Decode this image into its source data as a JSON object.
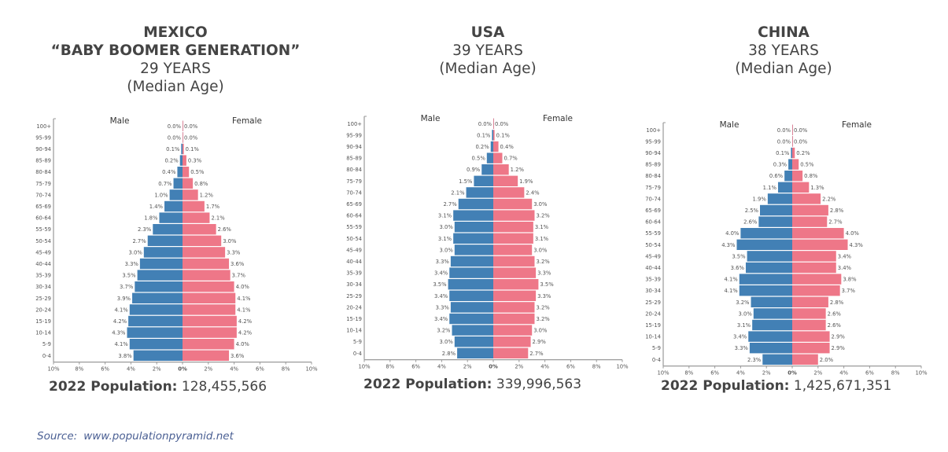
{
  "colors": {
    "male": "#4280b5",
    "female": "#ee7788",
    "text": "#444444",
    "axis": "#9a9a9a",
    "source": "#4a5f93"
  },
  "source": {
    "label": "Source:",
    "url": "www.populationpyramid.net"
  },
  "chart_data": [
    {
      "type": "bar",
      "subtype": "population-pyramid",
      "title_lines": [
        "MEXICO",
        "“BABY BOOMER GENERATION”",
        "29 YEARS",
        "(Median Age)"
      ],
      "title_bold_lines": 2,
      "population_label": "2022 Population:",
      "population_value": "128,455,566",
      "legend": [
        "Male",
        "Female"
      ],
      "categories": [
        "100+",
        "95-99",
        "90-94",
        "85-89",
        "80-84",
        "75-79",
        "70-74",
        "65-69",
        "60-64",
        "55-59",
        "50-54",
        "45-49",
        "40-44",
        "35-39",
        "30-34",
        "25-29",
        "20-24",
        "15-19",
        "10-14",
        "5-9",
        "0-4"
      ],
      "series": [
        {
          "name": "Male",
          "values": [
            0.0,
            0.0,
            0.1,
            0.2,
            0.4,
            0.7,
            1.0,
            1.4,
            1.8,
            2.3,
            2.7,
            3.0,
            3.3,
            3.5,
            3.7,
            3.9,
            4.1,
            4.2,
            4.3,
            4.1,
            3.8
          ]
        },
        {
          "name": "Female",
          "values": [
            0.0,
            0.0,
            0.1,
            0.3,
            0.5,
            0.8,
            1.2,
            1.7,
            2.1,
            2.6,
            3.0,
            3.3,
            3.6,
            3.7,
            4.0,
            4.1,
            4.1,
            4.2,
            4.2,
            4.0,
            3.6
          ]
        }
      ],
      "xticks": [
        "10%",
        "8%",
        "6%",
        "4%",
        "2%",
        "0%",
        "2%",
        "4%",
        "6%",
        "8%",
        "10%"
      ],
      "xlim": [
        -10,
        10
      ],
      "unit": "%"
    },
    {
      "type": "bar",
      "subtype": "population-pyramid",
      "title_lines": [
        "USA",
        "39 YEARS",
        "(Median Age)"
      ],
      "title_bold_lines": 1,
      "population_label": "2022 Population:",
      "population_value": "339,996,563",
      "legend": [
        "Male",
        "Female"
      ],
      "categories": [
        "100+",
        "95-99",
        "90-94",
        "85-89",
        "80-84",
        "75-79",
        "70-74",
        "65-69",
        "60-64",
        "55-59",
        "50-54",
        "45-49",
        "40-44",
        "35-39",
        "30-34",
        "25-29",
        "20-24",
        "15-19",
        "10-14",
        "5-9",
        "0-4"
      ],
      "series": [
        {
          "name": "Male",
          "values": [
            0.0,
            0.1,
            0.2,
            0.5,
            0.9,
            1.5,
            2.1,
            2.7,
            3.1,
            3.0,
            3.1,
            3.0,
            3.3,
            3.4,
            3.5,
            3.4,
            3.3,
            3.4,
            3.2,
            3.0,
            2.8
          ]
        },
        {
          "name": "Female",
          "values": [
            0.0,
            0.1,
            0.4,
            0.7,
            1.2,
            1.9,
            2.4,
            3.0,
            3.2,
            3.1,
            3.1,
            3.0,
            3.2,
            3.3,
            3.5,
            3.3,
            3.2,
            3.2,
            3.0,
            2.9,
            2.7
          ]
        }
      ],
      "xticks": [
        "10%",
        "8%",
        "6%",
        "4%",
        "2%",
        "0%",
        "2%",
        "4%",
        "6%",
        "8%",
        "10%"
      ],
      "xlim": [
        -10,
        10
      ],
      "unit": "%"
    },
    {
      "type": "bar",
      "subtype": "population-pyramid",
      "title_lines": [
        "CHINA",
        "38 YEARS",
        "(Median Age)"
      ],
      "title_bold_lines": 1,
      "population_label": "2022 Population:",
      "population_value": "1,425,671,351",
      "legend": [
        "Male",
        "Female"
      ],
      "categories": [
        "100+",
        "95-99",
        "90-94",
        "85-89",
        "80-84",
        "75-79",
        "70-74",
        "65-69",
        "60-64",
        "55-59",
        "50-54",
        "45-49",
        "40-44",
        "35-39",
        "30-34",
        "25-29",
        "20-24",
        "15-19",
        "10-14",
        "5-9",
        "0-4"
      ],
      "series": [
        {
          "name": "Male",
          "values": [
            0.0,
            0.0,
            0.1,
            0.3,
            0.6,
            1.1,
            1.9,
            2.5,
            2.6,
            4.0,
            4.3,
            3.5,
            3.6,
            4.1,
            4.1,
            3.2,
            3.0,
            3.1,
            3.4,
            3.3,
            2.3
          ]
        },
        {
          "name": "Female",
          "values": [
            0.0,
            0.0,
            0.2,
            0.5,
            0.8,
            1.3,
            2.2,
            2.8,
            2.7,
            4.0,
            4.3,
            3.4,
            3.4,
            3.8,
            3.7,
            2.8,
            2.6,
            2.6,
            2.9,
            2.9,
            2.0
          ]
        }
      ],
      "xticks": [
        "10%",
        "8%",
        "6%",
        "4%",
        "2%",
        "0%",
        "2%",
        "4%",
        "6%",
        "8%",
        "10%"
      ],
      "xlim": [
        -10,
        10
      ],
      "unit": "%"
    }
  ]
}
